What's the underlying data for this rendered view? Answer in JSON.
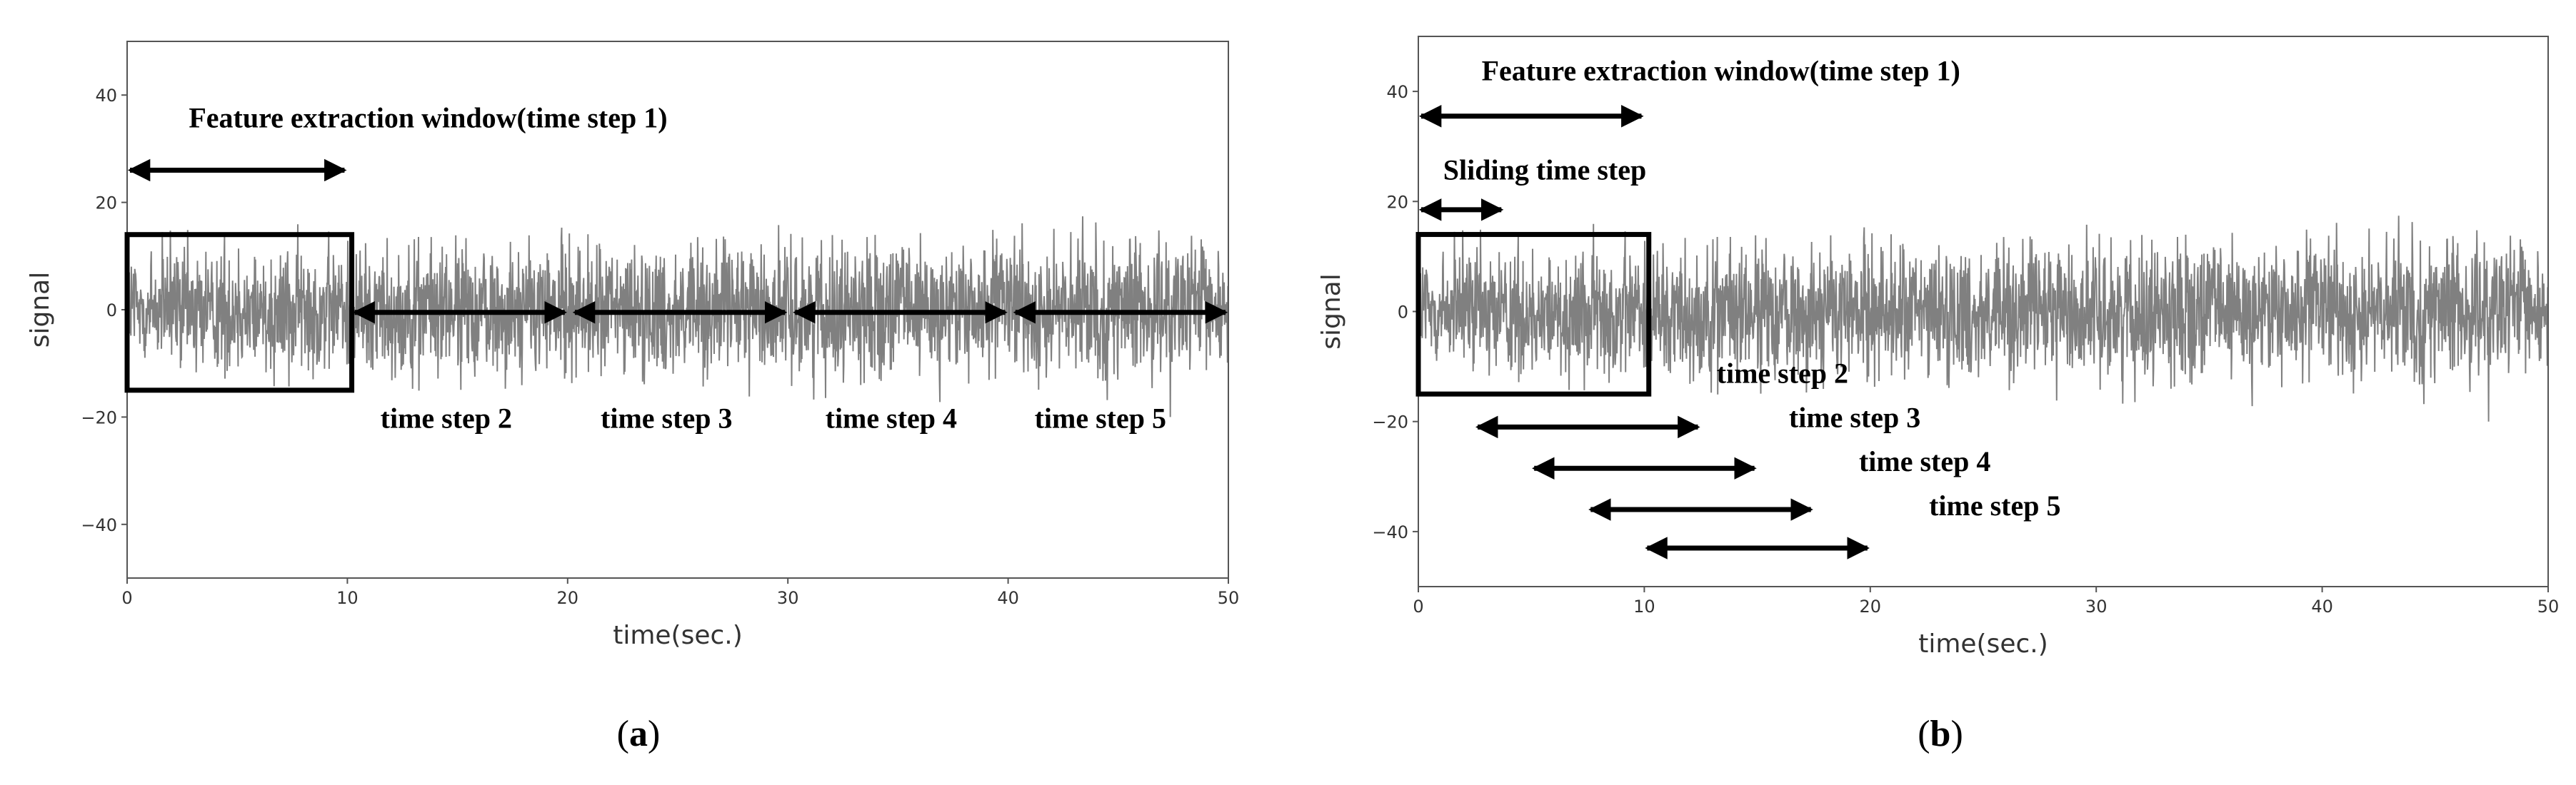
{
  "chart_data": [
    {
      "type": "line",
      "panel_label": "a",
      "xlabel": "time(sec.)",
      "ylabel": "signal",
      "xlim": [
        0,
        50
      ],
      "ylim": [
        -50,
        50
      ],
      "xticks": [
        0,
        10,
        20,
        30,
        40,
        50
      ],
      "yticks": [
        -40,
        -20,
        0,
        20,
        40
      ],
      "grid": false,
      "signal": {
        "description_visible": "noise signal, roughly within -15 to 15, peaks to about ±19",
        "color": "#808080"
      },
      "window_box": {
        "x": [
          0,
          10.2
        ],
        "y": [
          -15,
          14
        ]
      },
      "annotations": [
        {
          "text": "Feature extraction window(time step 1)",
          "x": 2.8,
          "y": 34,
          "arrow": {
            "x": [
              0,
              10
            ],
            "y": 26
          }
        },
        {
          "text": "time step 2",
          "x": 11.5,
          "y": -22,
          "arrow": {
            "x": [
              10.2,
              20
            ],
            "y": -0.5
          }
        },
        {
          "text": "time step 3",
          "x": 21.5,
          "y": -22,
          "arrow": {
            "x": [
              20.2,
              30
            ],
            "y": -0.5
          }
        },
        {
          "text": "time step 4",
          "x": 31.7,
          "y": -22,
          "arrow": {
            "x": [
              30.2,
              40
            ],
            "y": -0.5
          }
        },
        {
          "text": "time step 5",
          "x": 41.2,
          "y": -22,
          "arrow": {
            "x": [
              40.2,
              50
            ],
            "y": -0.5
          }
        }
      ]
    },
    {
      "type": "line",
      "panel_label": "b",
      "xlabel": "time(sec.)",
      "ylabel": "signal",
      "xlim": [
        0,
        50
      ],
      "ylim": [
        -50,
        50
      ],
      "xticks": [
        0,
        10,
        20,
        30,
        40,
        50
      ],
      "yticks": [
        -40,
        -20,
        0,
        20,
        40
      ],
      "grid": false,
      "signal": {
        "description_visible": "noise signal, roughly within -15 to 15, peaks to about ±20",
        "color": "#808080"
      },
      "window_box": {
        "x": [
          0,
          10.2
        ],
        "y": [
          -15,
          14
        ]
      },
      "annotations": [
        {
          "text": "Feature extraction window(time step 1)",
          "x": 2.8,
          "y": 42,
          "arrow": {
            "x": [
              0,
              10
            ],
            "y": 35.5
          }
        },
        {
          "text": "Sliding time step",
          "x": 1.1,
          "y": 24,
          "arrow": {
            "x": [
              0,
              3.8
            ],
            "y": 18.5
          }
        },
        {
          "text": "time step 2",
          "x": 13.2,
          "y": -13,
          "arrow": {
            "x": [
              2.5,
              12.5
            ],
            "y": -21
          }
        },
        {
          "text": "time step 3",
          "x": 16.4,
          "y": -21,
          "arrow": {
            "x": [
              5,
              15
            ],
            "y": -28.5
          }
        },
        {
          "text": "time step 4",
          "x": 19.5,
          "y": -29,
          "arrow": {
            "x": [
              7.5,
              17.5
            ],
            "y": -36
          }
        },
        {
          "text": "time step 5",
          "x": 22.6,
          "y": -37,
          "arrow": {
            "x": [
              10,
              20
            ],
            "y": -43
          }
        }
      ]
    }
  ],
  "captions": {
    "a": "a",
    "b": "b"
  }
}
